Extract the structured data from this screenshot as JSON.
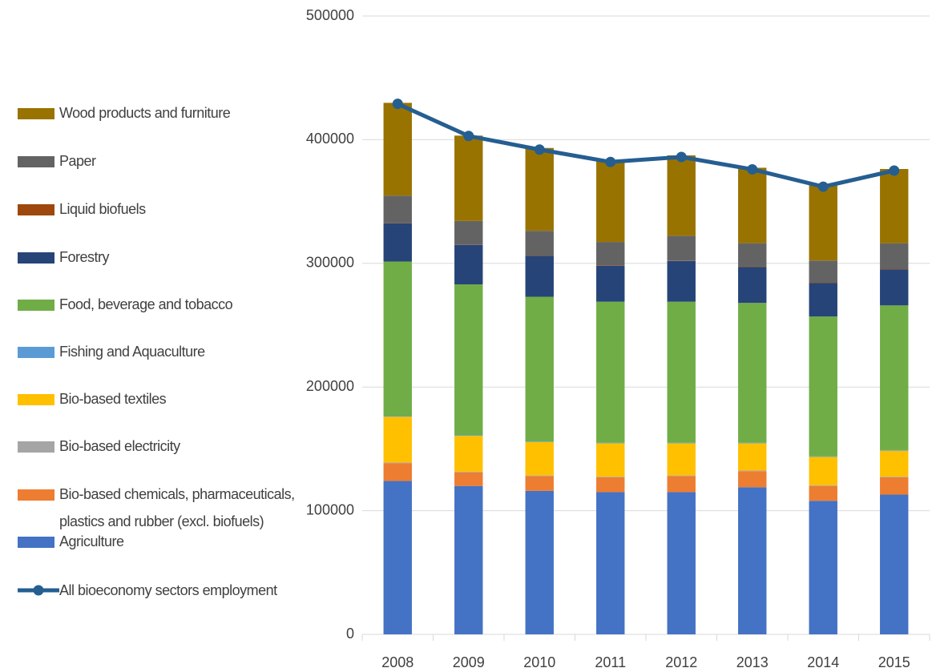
{
  "chart_data": {
    "type": "stacked_bar_line",
    "categories": [
      "2008",
      "2009",
      "2010",
      "2011",
      "2012",
      "2013",
      "2014",
      "2015"
    ],
    "series": [
      {
        "name": "Agriculture",
        "color": "#4472c4",
        "values": [
          124000,
          120000,
          116000,
          115000,
          115000,
          119000,
          108000,
          113000
        ]
      },
      {
        "name": "Bio-based chemicals, pharmaceuticals, plastics and rubber (excl. biofuels)",
        "color": "#ed7d31",
        "values": [
          14500,
          11000,
          12000,
          12000,
          13000,
          13000,
          12000,
          14000
        ]
      },
      {
        "name": "Bio-based electricity",
        "color": "#a5a5a5",
        "values": [
          500,
          500,
          500,
          500,
          500,
          500,
          500,
          500
        ]
      },
      {
        "name": "Bio-based textiles",
        "color": "#ffc000",
        "values": [
          37000,
          29000,
          27000,
          27000,
          26000,
          22000,
          23000,
          21000
        ]
      },
      {
        "name": "Fishing and Aquaculture",
        "color": "#5b9bd5",
        "values": [
          500,
          500,
          500,
          500,
          500,
          500,
          500,
          500
        ]
      },
      {
        "name": "Food, beverage and tobacco",
        "color": "#70ad47",
        "values": [
          125000,
          122000,
          117000,
          114000,
          114000,
          113000,
          113000,
          117000
        ]
      },
      {
        "name": "Forestry",
        "color": "#264478",
        "values": [
          31000,
          32000,
          33000,
          29000,
          33000,
          29000,
          27000,
          29000
        ]
      },
      {
        "name": "Liquid biofuels",
        "color": "#9e480e",
        "values": [
          300,
          300,
          300,
          300,
          300,
          300,
          300,
          300
        ]
      },
      {
        "name": "Paper",
        "color": "#636363",
        "values": [
          22000,
          19000,
          20000,
          19000,
          20000,
          19000,
          18000,
          21000
        ]
      },
      {
        "name": "Wood products and furniture",
        "color": "#997300",
        "values": [
          75000,
          69000,
          67000,
          66000,
          65000,
          61000,
          61000,
          60000
        ]
      }
    ],
    "line": {
      "name": "All bioeconomy sectors employment",
      "color": "#255e91",
      "values": [
        429000,
        403000,
        392000,
        382000,
        386000,
        376000,
        362000,
        375000
      ]
    },
    "ylim": [
      0,
      500000
    ],
    "yticks": [
      0,
      100000,
      200000,
      300000,
      400000,
      500000
    ],
    "grid": true,
    "legend": "left"
  }
}
